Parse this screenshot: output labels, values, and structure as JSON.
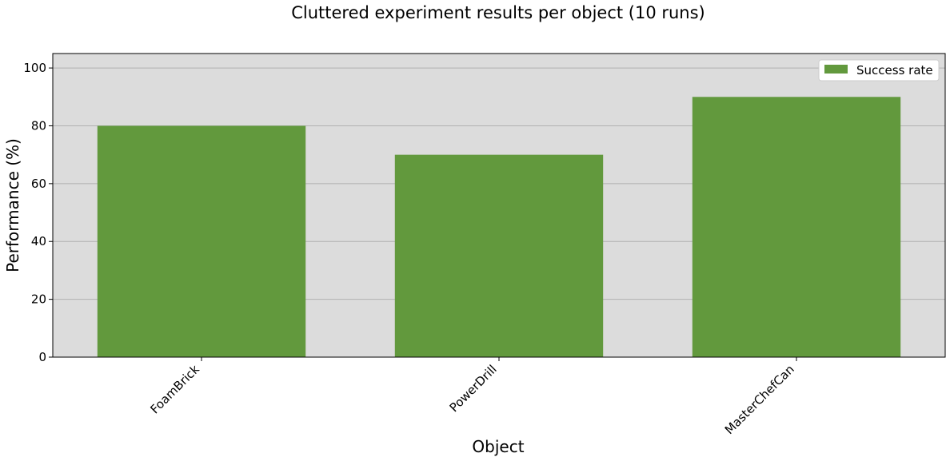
{
  "chart_data": {
    "type": "bar",
    "title": "Cluttered experiment results per object (10 runs)",
    "xlabel": "Object",
    "ylabel": "Performance (%)",
    "categories": [
      "FoamBrick",
      "PowerDrill",
      "MasterChefCan"
    ],
    "series": [
      {
        "name": "Success rate",
        "values": [
          80,
          70,
          90
        ],
        "color": "#62993d"
      }
    ],
    "ylim": [
      0,
      105
    ],
    "yticks": [
      0,
      20,
      40,
      60,
      80,
      100
    ],
    "grid": "y",
    "legend": "top-right",
    "colors": {
      "plot_background": "#dcdcdc",
      "grid": "#b0b0b0"
    }
  }
}
